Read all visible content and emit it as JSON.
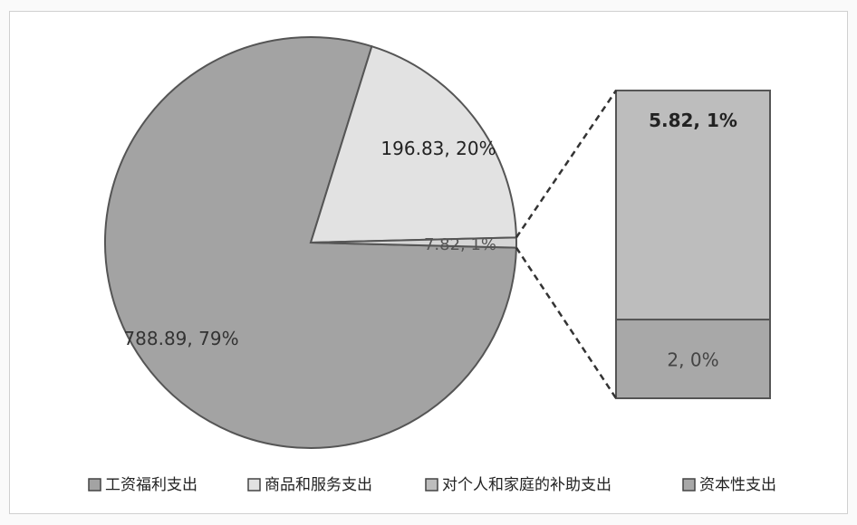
{
  "chart_data": {
    "type": "pie",
    "subtype": "bar-of-pie",
    "title": "",
    "series": [
      {
        "name": "工资福利支出",
        "value": 788.89,
        "percent_label": "79%",
        "label": "788.89, 79%",
        "color": "#a3a3a3"
      },
      {
        "name": "商品和服务支出",
        "value": 196.83,
        "percent_label": "20%",
        "label": "196.83, 20%",
        "color": "#e2e2e2"
      },
      {
        "name": "对个人和家庭的补助支出",
        "value": 5.82,
        "percent_label": "1%",
        "label": "5.82, 1%",
        "color": "#bdbdbd"
      },
      {
        "name": "资本性支出",
        "value": 2,
        "percent_label": "0%",
        "label": "2, 0%",
        "color": "#a8a8a8"
      }
    ],
    "pie_other_label": "7.82, 1%",
    "legend_position": "bottom"
  }
}
